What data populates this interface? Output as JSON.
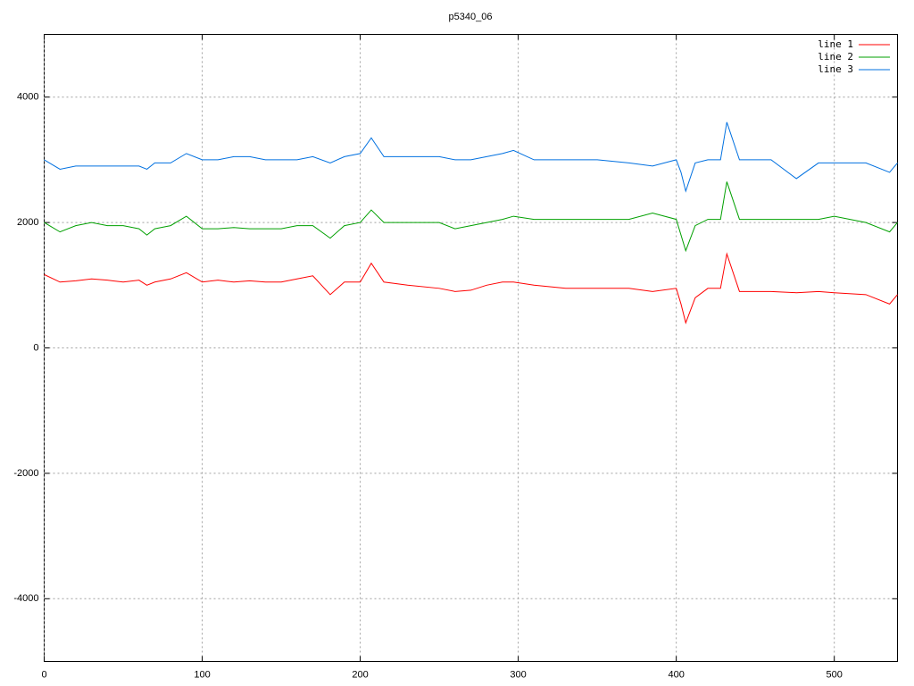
{
  "chart_data": {
    "type": "line",
    "title": "p5340_06",
    "x": [
      0,
      10,
      20,
      30,
      40,
      50,
      60,
      65,
      70,
      80,
      90,
      100,
      110,
      120,
      130,
      140,
      150,
      160,
      170,
      181,
      190,
      200,
      207,
      215,
      230,
      250,
      260,
      270,
      280,
      290,
      297,
      310,
      330,
      350,
      370,
      385,
      400,
      403,
      406,
      412,
      420,
      428,
      432,
      440,
      450,
      460,
      476,
      490,
      500,
      520,
      535,
      540
    ],
    "series": [
      {
        "name": "line 1",
        "color": "#ff0000",
        "values": [
          1170,
          1050,
          1070,
          1100,
          1080,
          1050,
          1080,
          1000,
          1050,
          1100,
          1200,
          1050,
          1080,
          1050,
          1070,
          1050,
          1050,
          1100,
          1150,
          850,
          1050,
          1050,
          1350,
          1050,
          1000,
          950,
          900,
          920,
          1000,
          1050,
          1050,
          1000,
          950,
          950,
          950,
          900,
          950,
          700,
          400,
          800,
          950,
          950,
          1500,
          900,
          900,
          900,
          880,
          900,
          880,
          850,
          700,
          850
        ]
      },
      {
        "name": "line 2",
        "color": "#00a000",
        "values": [
          2000,
          1850,
          1950,
          2000,
          1950,
          1950,
          1900,
          1800,
          1900,
          1950,
          2100,
          1900,
          1900,
          1920,
          1900,
          1900,
          1900,
          1950,
          1950,
          1750,
          1950,
          2000,
          2200,
          2000,
          2000,
          2000,
          1900,
          1950,
          2000,
          2050,
          2100,
          2050,
          2050,
          2050,
          2050,
          2150,
          2050,
          1800,
          1550,
          1950,
          2050,
          2050,
          2650,
          2050,
          2050,
          2050,
          2050,
          2050,
          2100,
          2000,
          1850,
          2000
        ]
      },
      {
        "name": "line 3",
        "color": "#0070e0",
        "values": [
          3000,
          2850,
          2900,
          2900,
          2900,
          2900,
          2900,
          2850,
          2950,
          2950,
          3100,
          3000,
          3000,
          3050,
          3050,
          3000,
          3000,
          3000,
          3050,
          2950,
          3050,
          3100,
          3350,
          3050,
          3050,
          3050,
          3000,
          3000,
          3050,
          3100,
          3150,
          3000,
          3000,
          3000,
          2950,
          2900,
          3000,
          2800,
          2500,
          2950,
          3000,
          3000,
          3600,
          3000,
          3000,
          3000,
          2700,
          2950,
          2950,
          2950,
          2800,
          2950
        ]
      }
    ],
    "xlim": [
      0,
      540
    ],
    "xticks": [
      0,
      100,
      200,
      300,
      400,
      500
    ],
    "ylim": [
      -5000,
      5000
    ],
    "yticks": [
      -4000,
      -2000,
      0,
      2000,
      4000
    ],
    "grid": true,
    "legend": "top-right"
  }
}
